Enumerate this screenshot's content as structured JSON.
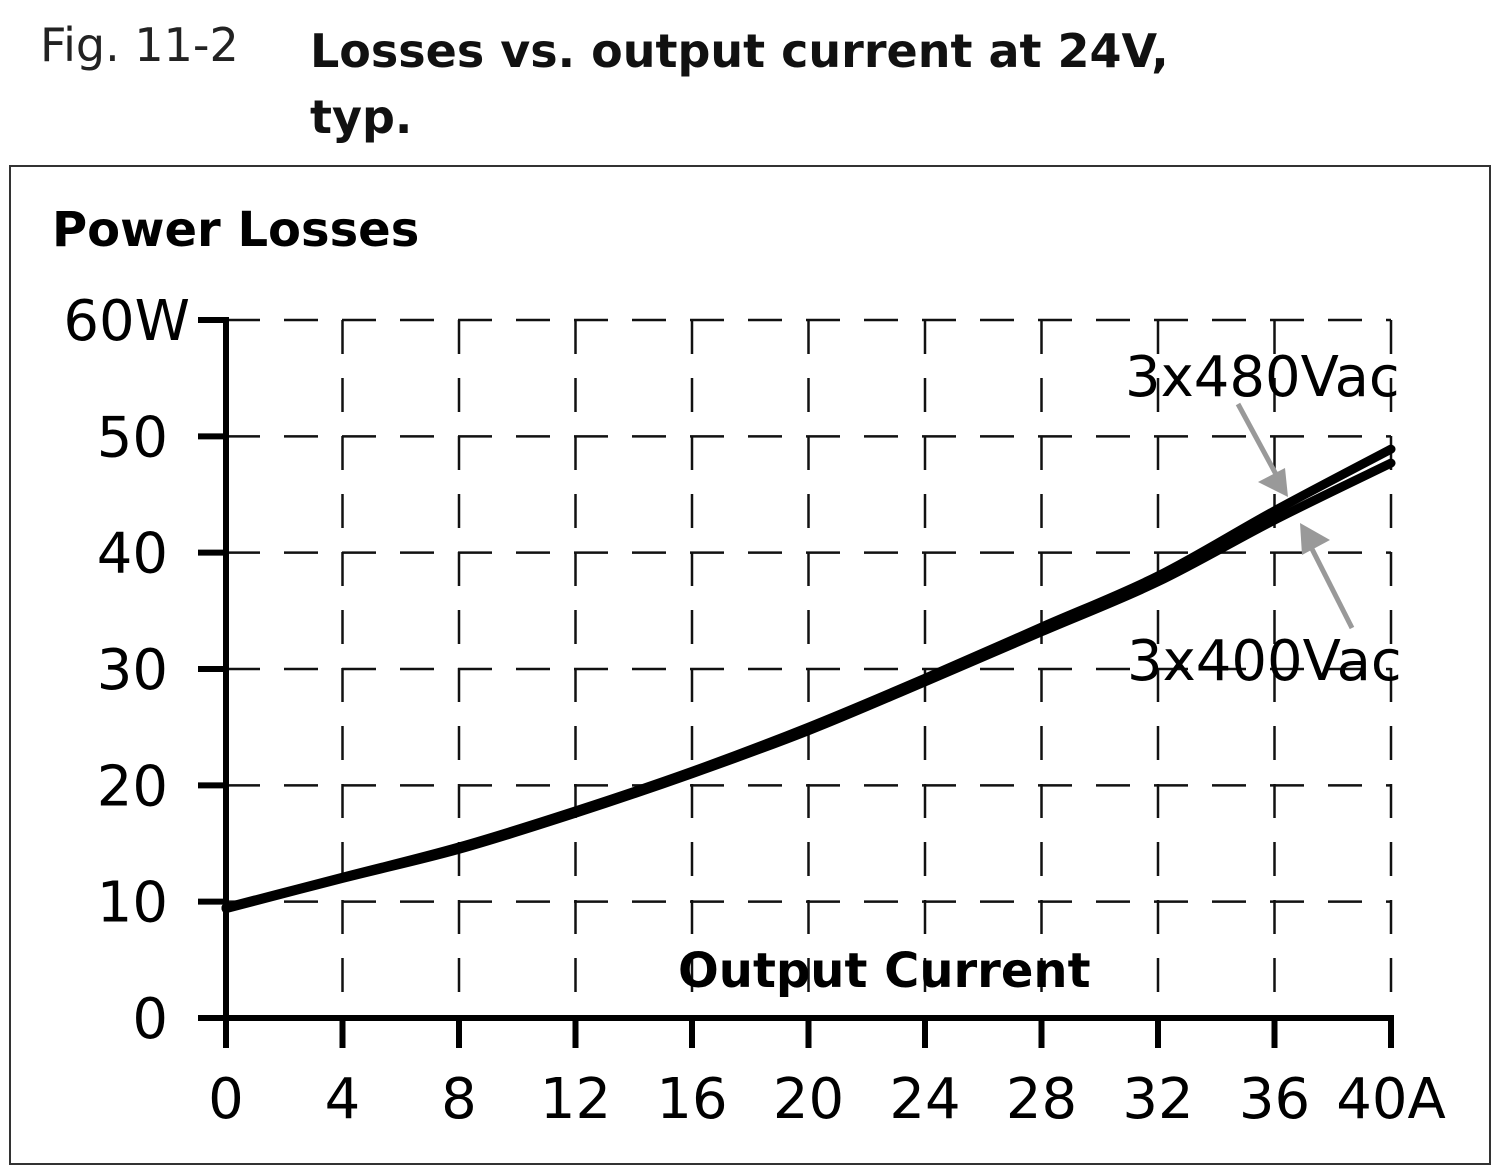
{
  "figure": {
    "number": "Fig. 11-2",
    "title_line1": "Losses vs. output current at 24V,",
    "title_line2": "typ."
  },
  "chart_data": {
    "type": "line",
    "title": "Losses vs. output current at 24V, typ.",
    "ylabel": "Power Losses",
    "xlabel": "Output Current",
    "xlim": [
      0,
      40
    ],
    "ylim": [
      0,
      60
    ],
    "x_ticks": [
      "0",
      "4",
      "8",
      "12",
      "16",
      "20",
      "24",
      "28",
      "32",
      "36",
      "40A"
    ],
    "y_ticks": [
      "0",
      "10",
      "20",
      "30",
      "40",
      "50",
      "60W"
    ],
    "grid": true,
    "x": [
      0,
      4,
      8,
      12,
      16,
      20,
      24,
      28,
      32,
      36,
      40
    ],
    "series": [
      {
        "name": "3x480Vac",
        "values": [
          9.5,
          12.1,
          14.7,
          17.8,
          21.2,
          25.0,
          29.2,
          33.6,
          38.0,
          43.6,
          48.9
        ]
      },
      {
        "name": "3x400Vac",
        "values": [
          9.4,
          12.0,
          14.5,
          17.6,
          21.0,
          24.7,
          28.9,
          33.2,
          37.5,
          42.8,
          47.7
        ]
      }
    ],
    "line_color": "#000000",
    "arrow_color": "#999999"
  }
}
